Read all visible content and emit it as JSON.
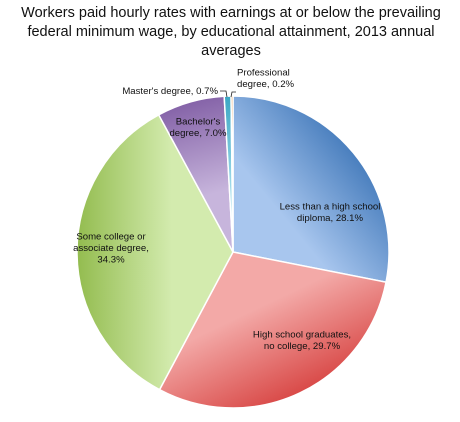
{
  "chart_data": {
    "type": "pie",
    "title_lines": [
      "Workers paid hourly rates with earnings at or below the prevailing",
      "federal minimum wage, by educational attainment, 2013 annual",
      "averages"
    ],
    "slices": [
      {
        "label_lines": [
          "Less than a high school",
          "diploma, 28.1%"
        ],
        "value": 28.1,
        "color": "#4a7fbe",
        "color_light": "#a8c6ee"
      },
      {
        "label_lines": [
          "High school graduates,",
          "no college, 29.7%"
        ],
        "value": 29.7,
        "color": "#d94a48",
        "color_light": "#f3a9a7"
      },
      {
        "label_lines": [
          "Some college or",
          "associate degree,",
          "34.3%"
        ],
        "value": 34.3,
        "color": "#93bc4f",
        "color_light": "#d3ebae"
      },
      {
        "label_lines": [
          "Bachelor's",
          "degree, 7.0%"
        ],
        "value": 7.0,
        "color": "#8563a8",
        "color_light": "#c7b5dc"
      },
      {
        "label_lines": [
          "Master's degree, 0.7%"
        ],
        "value": 0.7,
        "color": "#3aa7c4",
        "color_light": "#a3dcea"
      },
      {
        "label_lines": [
          "Professional",
          "degree, 0.2%"
        ],
        "value": 0.2,
        "color": "#e6903e",
        "color_light": "#f6c79a"
      }
    ]
  }
}
